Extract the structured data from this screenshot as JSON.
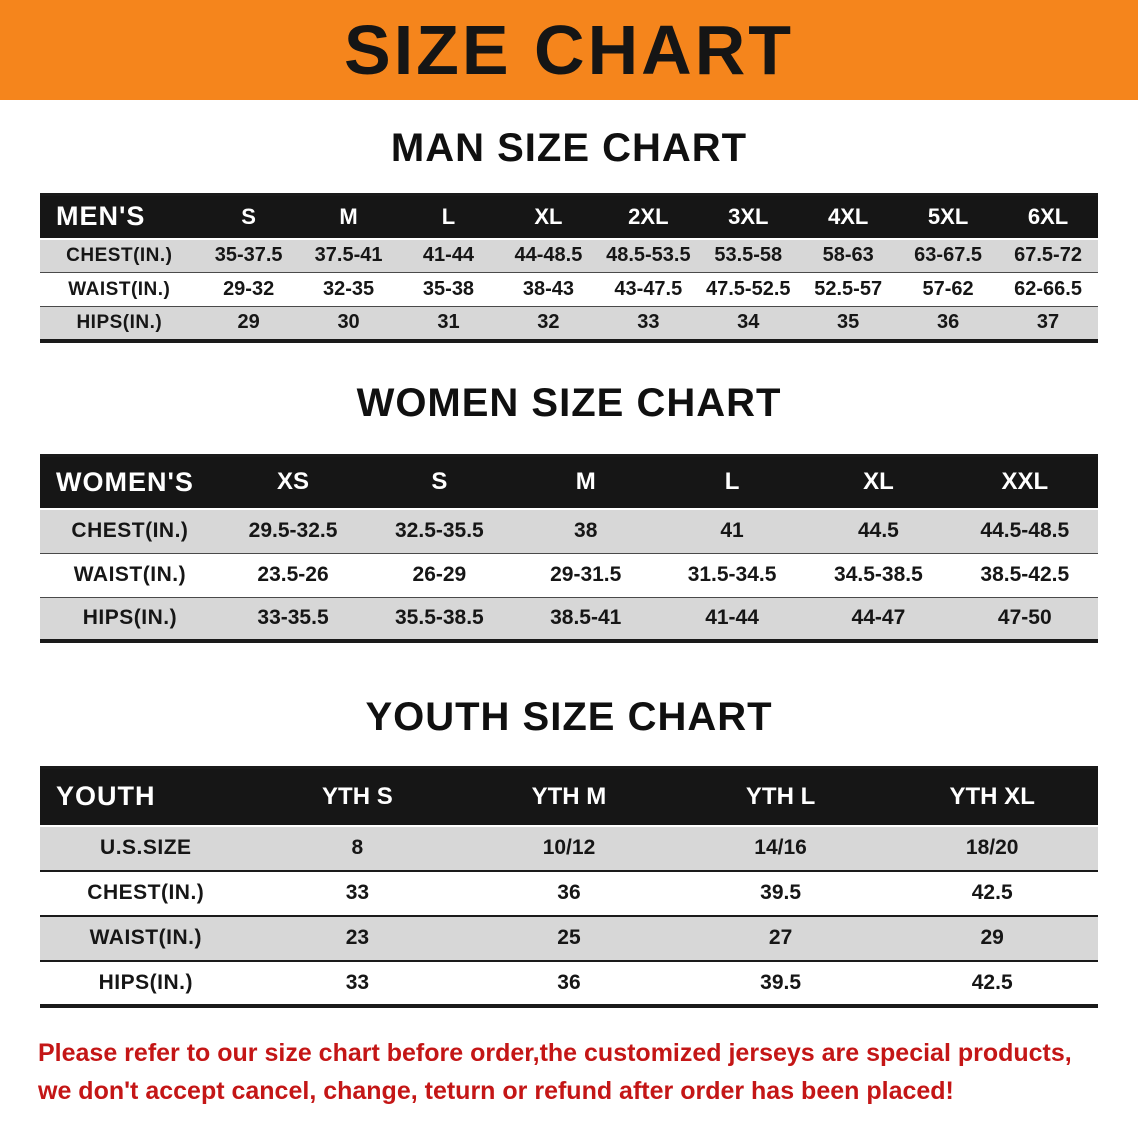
{
  "banner": {
    "title": "SIZE CHART",
    "bg_color": "#f5851c"
  },
  "colors": {
    "table_header_bg": "#161616",
    "row_alt_bg": "#d7d7d7",
    "footer_text": "#c41616"
  },
  "men": {
    "heading": "MAN SIZE CHART",
    "header": [
      "MEN'S",
      "S",
      "M",
      "L",
      "XL",
      "2XL",
      "3XL",
      "4XL",
      "5XL",
      "6XL"
    ],
    "rows": [
      [
        "CHEST(IN.)",
        "35-37.5",
        "37.5-41",
        "41-44",
        "44-48.5",
        "48.5-53.5",
        "53.5-58",
        "58-63",
        "63-67.5",
        "67.5-72"
      ],
      [
        "WAIST(IN.)",
        "29-32",
        "32-35",
        "35-38",
        "38-43",
        "43-47.5",
        "47.5-52.5",
        "52.5-57",
        "57-62",
        "62-66.5"
      ],
      [
        "HIPS(IN.)",
        "29",
        "30",
        "31",
        "32",
        "33",
        "34",
        "35",
        "36",
        "37"
      ]
    ]
  },
  "women": {
    "heading": "WOMEN SIZE CHART",
    "header": [
      "WOMEN'S",
      "XS",
      "S",
      "M",
      "L",
      "XL",
      "XXL"
    ],
    "rows": [
      [
        "CHEST(IN.)",
        "29.5-32.5",
        "32.5-35.5",
        "38",
        "41",
        "44.5",
        "44.5-48.5"
      ],
      [
        "WAIST(IN.)",
        "23.5-26",
        "26-29",
        "29-31.5",
        "31.5-34.5",
        "34.5-38.5",
        "38.5-42.5"
      ],
      [
        "HIPS(IN.)",
        "33-35.5",
        "35.5-38.5",
        "38.5-41",
        "41-44",
        "44-47",
        "47-50"
      ]
    ]
  },
  "youth": {
    "heading": "YOUTH SIZE CHART",
    "header": [
      "YOUTH",
      "YTH S",
      "YTH M",
      "YTH L",
      "YTH XL"
    ],
    "rows": [
      [
        "U.S.SIZE",
        "8",
        "10/12",
        "14/16",
        "18/20"
      ],
      [
        "CHEST(IN.)",
        "33",
        "36",
        "39.5",
        "42.5"
      ],
      [
        "WAIST(IN.)",
        "23",
        "25",
        "27",
        "29"
      ],
      [
        "HIPS(IN.)",
        "33",
        "36",
        "39.5",
        "42.5"
      ]
    ]
  },
  "footer": {
    "line1": "Please refer to our size chart before order,the customized jerseys are special products,",
    "line2": "we don't accept cancel, change, teturn or refund after order has been placed!"
  }
}
